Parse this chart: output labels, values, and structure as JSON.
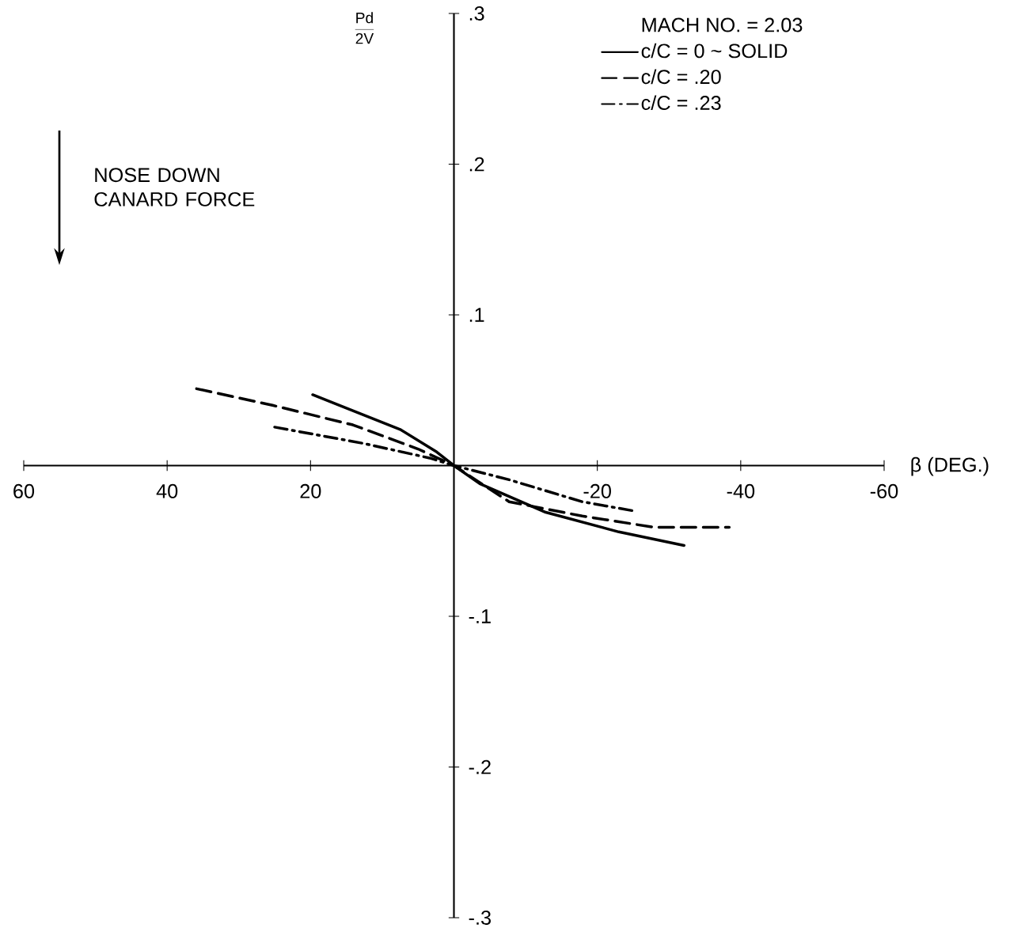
{
  "chart_data": {
    "type": "line",
    "xlabel": "β (DEG.)",
    "ylabel": "\\frac{\\mathrm{Pd}}{\\mathrm{2V}}",
    "legend_title": "MACH NO. = 2.03",
    "annotations": [
      "NOSE DOWN CANARD FORCE"
    ],
    "xlim": [
      60,
      -60
    ],
    "xticks": [
      60,
      40,
      20,
      -20,
      -40,
      -60
    ],
    "ylim": [
      -0.3,
      0.3
    ],
    "yticks": [
      {
        "value": 0.3,
        "label": ".3"
      },
      {
        "value": 0.2,
        "label": ".2"
      },
      {
        "value": 0.1,
        "label": ".1"
      },
      {
        "value": -0.1,
        "label": "-.1"
      },
      {
        "value": -0.2,
        "label": "-.2"
      },
      {
        "value": -0.3,
        "label": "-.3"
      }
    ],
    "grid": false,
    "legend": "top right",
    "series": [
      {
        "name": "c/C = 0 ~ SOLID",
        "color": "#000000",
        "line_style": "solid",
        "x": [
          19.7,
          7.5,
          2.4,
          0,
          -3.6,
          -12.8,
          -23,
          -32.1
        ],
        "values": [
          0.047,
          0.024,
          0.009,
          0,
          -0.012,
          -0.031,
          -0.044,
          -0.053
        ]
      },
      {
        "name": "c/C = .20",
        "color": "#000000",
        "line_style": "dashed",
        "x": [
          35.9,
          25.3,
          14.1,
          5,
          0,
          -7.7,
          -17.9,
          -28,
          -38.4
        ],
        "values": [
          0.051,
          0.04,
          0.027,
          0.011,
          0,
          -0.024,
          -0.0335,
          -0.041,
          -0.041
        ]
      },
      {
        "name": "c/C = .23",
        "color": "#000000",
        "line_style": "dashdot",
        "x": [
          25,
          12.6,
          3.4,
          0,
          -7.7,
          -17.9,
          -25
        ],
        "values": [
          0.0255,
          0.0147,
          0.005,
          0,
          -0.0094,
          -0.024,
          -0.03
        ]
      }
    ]
  }
}
